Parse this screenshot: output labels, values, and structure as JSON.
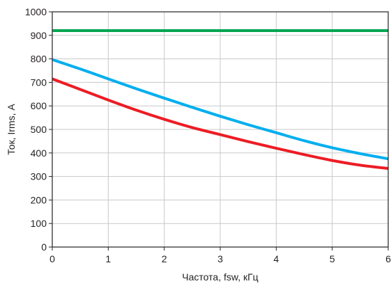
{
  "chart_data": {
    "type": "line",
    "title": "",
    "xlabel": "Частота, fsw, кГц",
    "ylabel": "Ток, Irms, А",
    "xlim": [
      0,
      6
    ],
    "ylim": [
      0,
      1000
    ],
    "xticks": [
      0,
      1,
      2,
      3,
      4,
      5,
      6
    ],
    "yticks": [
      0,
      100,
      200,
      300,
      400,
      500,
      600,
      700,
      800,
      900,
      1000
    ],
    "xtick_labels": [
      "0",
      "1",
      "2",
      "3",
      "4",
      "5",
      "6"
    ],
    "ytick_labels": [
      "0",
      "100",
      "200",
      "300",
      "400",
      "500",
      "600",
      "700",
      "800",
      "900",
      "1000"
    ],
    "grid": true,
    "legend": "none",
    "series": [
      {
        "color": "#00a651",
        "x": [
          0,
          1,
          2,
          3,
          4,
          5,
          6
        ],
        "y": [
          920,
          920,
          920,
          920,
          920,
          920,
          920
        ]
      },
      {
        "color": "#00aeef",
        "x": [
          0,
          0.5,
          1,
          1.5,
          2,
          2.5,
          3,
          3.5,
          4,
          4.5,
          5,
          5.5,
          6
        ],
        "y": [
          797,
          757,
          715,
          673,
          633,
          594,
          556,
          520,
          486,
          452,
          422,
          397,
          375
        ]
      },
      {
        "color": "#ed1c24",
        "x": [
          0,
          0.5,
          1,
          1.5,
          2,
          2.5,
          3,
          3.5,
          4,
          4.5,
          5,
          5.5,
          6
        ],
        "y": [
          715,
          670,
          625,
          582,
          543,
          508,
          478,
          448,
          420,
          393,
          368,
          348,
          334
        ]
      }
    ]
  }
}
